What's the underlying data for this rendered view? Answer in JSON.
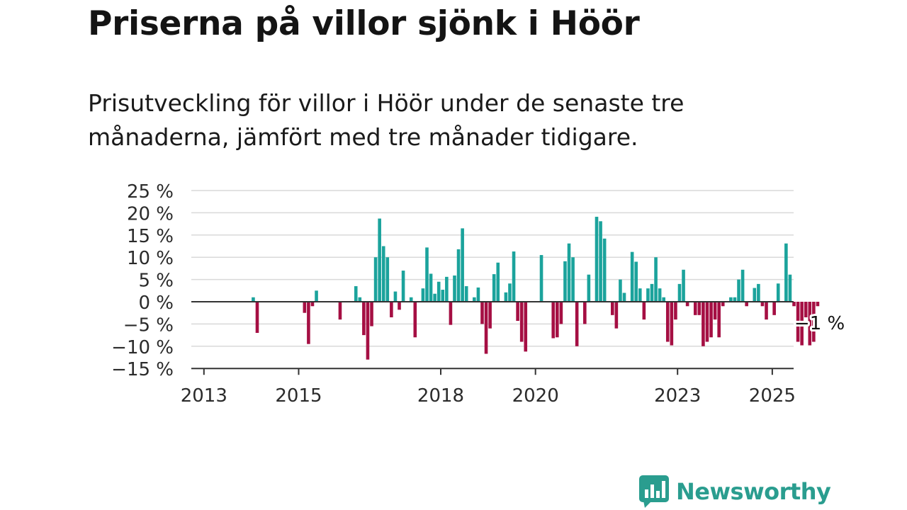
{
  "title": "Priserna på villor sjönk i Höör",
  "subtitle": "Prisutveckling för villor i Höör under de senaste tre månaderna, jämfört med tre månader tidigare.",
  "brand": {
    "name": "Newsworthy",
    "color": "#2a9d8f",
    "icon": "newsworthy-chart-bubble-icon"
  },
  "colors": {
    "positive": "#1ba39c",
    "negative": "#a50f43",
    "grid": "#d9d9d9",
    "axis": "#333333"
  },
  "chart_data": {
    "type": "bar",
    "x_start": "2013-07",
    "x_unit": "month",
    "ylim": [
      -15,
      25
    ],
    "yticks": [
      25,
      20,
      15,
      10,
      5,
      0,
      -5,
      -10,
      -15
    ],
    "ytick_labels": [
      "25 %",
      "20 %",
      "15 %",
      "10 %",
      "5 %",
      "0 %",
      "−5 %",
      "−10 %",
      "−15 %"
    ],
    "xticks": [
      "2013",
      "2015",
      "2018",
      "2020",
      "2023",
      "2025"
    ],
    "grid": true,
    "annotation": {
      "text": "−1 %",
      "target": "last"
    },
    "values": [
      0,
      0,
      0,
      0,
      0,
      0,
      1,
      -7,
      0,
      0,
      0,
      0,
      0,
      0,
      0,
      0,
      0,
      0,
      0,
      -2.5,
      -9.5,
      -1,
      2.5,
      0,
      0,
      0,
      0,
      0,
      -4,
      0,
      0,
      0,
      3.5,
      1,
      -7.5,
      -13,
      -5.5,
      10,
      18.7,
      12.5,
      10,
      -3.5,
      2.3,
      -1.8,
      7,
      0,
      1,
      -8,
      0,
      3,
      12.2,
      6.3,
      1.8,
      4.5,
      2.7,
      5.6,
      -5.2,
      5.9,
      11.8,
      16.5,
      3.5,
      0,
      1,
      3.2,
      -5,
      -11.7,
      -6,
      6.2,
      8.8,
      0,
      2.1,
      4.1,
      11.3,
      -4.3,
      -9,
      -11.2,
      0,
      0,
      0,
      10.5,
      0,
      0,
      -8.2,
      -8,
      -5,
      9.1,
      13.1,
      10,
      -10,
      0,
      -5,
      6.1,
      0,
      19.1,
      18.1,
      14.2,
      0,
      -3,
      -6,
      5,
      2,
      0,
      11.2,
      9,
      3,
      -4,
      3,
      4,
      10,
      3,
      1,
      -9,
      -9.8,
      -4,
      4,
      7.2,
      -1,
      0,
      -3,
      -3,
      -10,
      -9,
      -8,
      -4,
      -8,
      -1,
      0,
      1,
      1,
      5,
      7.2,
      -1,
      0,
      3.1,
      4,
      -1,
      -4,
      0,
      -3,
      4.1,
      0,
      13.1,
      6.1,
      -1,
      -9,
      -9.8,
      -3.5,
      -9.8,
      -9,
      -1
    ]
  }
}
